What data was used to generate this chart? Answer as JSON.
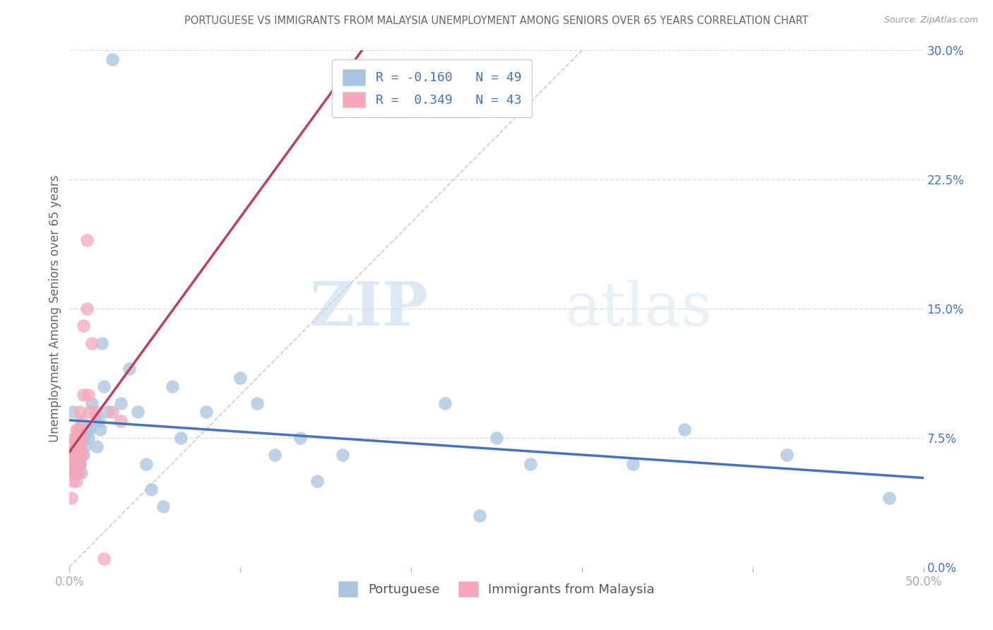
{
  "title": "PORTUGUESE VS IMMIGRANTS FROM MALAYSIA UNEMPLOYMENT AMONG SENIORS OVER 65 YEARS CORRELATION CHART",
  "source": "Source: ZipAtlas.com",
  "ylabel": "Unemployment Among Seniors over 65 years",
  "legend_bottom": [
    "Portuguese",
    "Immigrants from Malaysia"
  ],
  "R_blue": -0.16,
  "N_blue": 49,
  "R_pink": 0.349,
  "N_pink": 43,
  "blue_color": "#a8c4e0",
  "pink_color": "#f4a8ba",
  "trend_blue": "#4472c4",
  "trend_pink": "#c0405a",
  "diag_color": "#cccccc",
  "legend_text_color": "#4472c4",
  "title_color": "#666666",
  "axis_label_color": "#666666",
  "right_tick_color": "#4472c4",
  "xlim": [
    0.0,
    0.5
  ],
  "ylim": [
    0.0,
    0.3
  ],
  "yticks_right": [
    0.0,
    0.075,
    0.15,
    0.225,
    0.3
  ],
  "ytick_labels_right": [
    "0.0%",
    "7.5%",
    "15.0%",
    "22.5%",
    "30.0%"
  ],
  "blue_x": [
    0.002,
    0.003,
    0.003,
    0.004,
    0.004,
    0.005,
    0.005,
    0.005,
    0.006,
    0.006,
    0.007,
    0.008,
    0.008,
    0.009,
    0.01,
    0.011,
    0.012,
    0.013,
    0.015,
    0.016,
    0.017,
    0.018,
    0.019,
    0.02,
    0.022,
    0.025,
    0.03,
    0.035,
    0.04,
    0.045,
    0.048,
    0.055,
    0.06,
    0.065,
    0.08,
    0.1,
    0.11,
    0.12,
    0.135,
    0.145,
    0.16,
    0.22,
    0.24,
    0.27,
    0.33,
    0.36,
    0.42,
    0.48,
    0.25
  ],
  "blue_y": [
    0.09,
    0.06,
    0.075,
    0.07,
    0.055,
    0.065,
    0.07,
    0.075,
    0.06,
    0.075,
    0.055,
    0.065,
    0.075,
    0.07,
    0.08,
    0.075,
    0.08,
    0.095,
    0.085,
    0.07,
    0.085,
    0.08,
    0.13,
    0.105,
    0.09,
    0.295,
    0.095,
    0.115,
    0.09,
    0.06,
    0.045,
    0.035,
    0.105,
    0.075,
    0.09,
    0.11,
    0.095,
    0.065,
    0.075,
    0.05,
    0.065,
    0.095,
    0.03,
    0.06,
    0.06,
    0.08,
    0.065,
    0.04,
    0.075
  ],
  "pink_x": [
    0.001,
    0.001,
    0.001,
    0.001,
    0.002,
    0.002,
    0.002,
    0.002,
    0.002,
    0.003,
    0.003,
    0.003,
    0.003,
    0.003,
    0.004,
    0.004,
    0.004,
    0.004,
    0.004,
    0.005,
    0.005,
    0.005,
    0.005,
    0.005,
    0.006,
    0.006,
    0.006,
    0.006,
    0.006,
    0.007,
    0.007,
    0.007,
    0.008,
    0.008,
    0.01,
    0.01,
    0.011,
    0.012,
    0.013,
    0.015,
    0.02,
    0.025,
    0.03
  ],
  "pink_y": [
    0.04,
    0.055,
    0.06,
    0.065,
    0.05,
    0.055,
    0.06,
    0.065,
    0.07,
    0.055,
    0.06,
    0.065,
    0.07,
    0.075,
    0.05,
    0.06,
    0.065,
    0.07,
    0.08,
    0.055,
    0.06,
    0.07,
    0.075,
    0.08,
    0.06,
    0.065,
    0.07,
    0.08,
    0.09,
    0.065,
    0.075,
    0.085,
    0.1,
    0.14,
    0.15,
    0.19,
    0.1,
    0.09,
    0.13,
    0.09,
    0.005,
    0.09,
    0.085
  ],
  "watermark_zip": "ZIP",
  "watermark_atlas": "atlas",
  "background_color": "#ffffff",
  "grid_color": "#dddddd"
}
